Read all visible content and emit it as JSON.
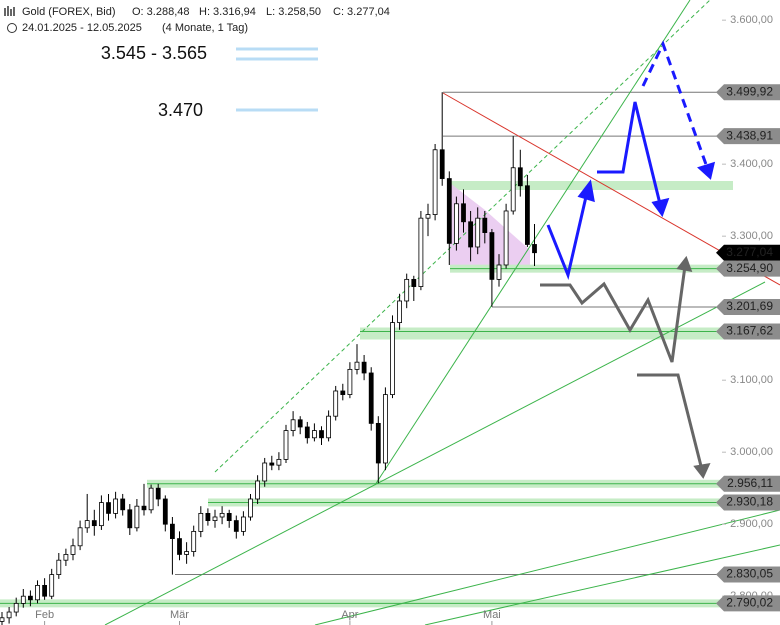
{
  "header": {
    "title": "Gold (FOREX, Bid)",
    "quote": [
      "O: 3.288,48",
      "H: 3.316,94",
      "L: 3.258,50",
      "C: 3.277,04"
    ],
    "range": "24.01.2025 - 12.05.2025",
    "span": "(4 Monate, 1 Tag)"
  },
  "chart_data": {
    "type": "candlestick",
    "categories": [
      null,
      null,
      null,
      null,
      null,
      null,
      "Feb",
      null,
      null,
      null,
      null,
      null,
      null,
      null,
      null,
      null,
      null,
      null,
      null,
      null,
      null,
      null,
      null,
      null,
      null,
      "Mär",
      null,
      null,
      null,
      null,
      null,
      null,
      null,
      null,
      null,
      null,
      null,
      null,
      null,
      null,
      null,
      null,
      null,
      null,
      null,
      null,
      null,
      null,
      null,
      "Apr",
      null,
      null,
      null,
      null,
      null,
      null,
      null,
      null,
      null,
      null,
      null,
      null,
      null,
      null,
      null,
      null,
      null,
      null,
      null,
      "Mai",
      null,
      null,
      null,
      null,
      null,
      null
    ],
    "open": [
      2765,
      2770,
      2778,
      2790,
      2800,
      2795,
      2815,
      2800,
      2830,
      2850,
      2858,
      2870,
      2895,
      2905,
      2898,
      2930,
      2915,
      2935,
      2920,
      2895,
      2925,
      2920,
      2950,
      2935,
      2900,
      2880,
      2858,
      2862,
      2890,
      2915,
      2905,
      2910,
      2915,
      2905,
      2890,
      2910,
      2935,
      2960,
      2985,
      2982,
      2990,
      3030,
      3045,
      3035,
      3020,
      3030,
      3020,
      3050,
      3085,
      3080,
      3115,
      3125,
      3110,
      3040,
      2985,
      3080,
      3180,
      3210,
      3240,
      3230,
      3325,
      3330,
      3420,
      3380,
      3290,
      3345,
      3320,
      3285,
      3325,
      3305,
      3240,
      3260,
      3335,
      3395,
      3370,
      3288.48
    ],
    "high": [
      2778,
      2785,
      2798,
      2810,
      2808,
      2822,
      2825,
      2838,
      2860,
      2866,
      2880,
      2905,
      2942,
      2920,
      2940,
      2942,
      2945,
      2942,
      2928,
      2935,
      2956,
      2955,
      2956,
      2940,
      2910,
      2890,
      2875,
      2898,
      2925,
      2922,
      2920,
      2925,
      2920,
      2912,
      2918,
      2942,
      2968,
      2992,
      2995,
      3000,
      3038,
      3057,
      3050,
      3042,
      3040,
      3036,
      3058,
      3092,
      3095,
      3125,
      3150,
      3135,
      3118,
      3050,
      3090,
      3190,
      3220,
      3248,
      3245,
      3335,
      3345,
      3428,
      3500,
      3390,
      3355,
      3365,
      3335,
      3340,
      3335,
      3310,
      3275,
      3345,
      3439,
      3420,
      3385,
      3316.94
    ],
    "low": [
      2758,
      2762,
      2772,
      2784,
      2786,
      2790,
      2795,
      2796,
      2824,
      2842,
      2850,
      2864,
      2888,
      2884,
      2892,
      2905,
      2908,
      2912,
      2885,
      2890,
      2912,
      2915,
      2925,
      2890,
      2830,
      2850,
      2845,
      2855,
      2882,
      2898,
      2895,
      2900,
      2895,
      2880,
      2884,
      2905,
      2928,
      2952,
      2975,
      2975,
      2985,
      3022,
      3025,
      3012,
      3015,
      3010,
      3015,
      3044,
      3072,
      3075,
      3108,
      3100,
      3030,
      2957,
      2975,
      3075,
      3170,
      3200,
      3210,
      3225,
      3300,
      3322,
      3370,
      3260,
      3280,
      3305,
      3265,
      3275,
      3290,
      3202,
      3230,
      3255,
      3330,
      3355,
      3285,
      3258.5
    ],
    "close": [
      2770,
      2778,
      2790,
      2800,
      2795,
      2815,
      2800,
      2830,
      2850,
      2858,
      2870,
      2895,
      2905,
      2898,
      2930,
      2915,
      2935,
      2920,
      2895,
      2925,
      2920,
      2950,
      2935,
      2900,
      2880,
      2858,
      2862,
      2890,
      2915,
      2905,
      2910,
      2915,
      2905,
      2890,
      2910,
      2935,
      2960,
      2985,
      2982,
      2990,
      3030,
      3045,
      3035,
      3020,
      3030,
      3020,
      3050,
      3085,
      3080,
      3115,
      3125,
      3110,
      3040,
      2985,
      3080,
      3180,
      3210,
      3240,
      3230,
      3325,
      3330,
      3420,
      3380,
      3290,
      3345,
      3320,
      3285,
      3325,
      3305,
      3240,
      3260,
      3335,
      3395,
      3370,
      3288.48,
      3277.04
    ],
    "up_color": "#ffffff",
    "down_color": "#000000",
    "ylim": [
      2760,
      3628
    ],
    "yticks": [
      {
        "value": 2800,
        "label": "2.800,00"
      },
      {
        "value": 2900,
        "label": "2.900,00"
      },
      {
        "value": 3000,
        "label": "3.000,00"
      },
      {
        "value": 3100,
        "label": "3.100,00"
      },
      {
        "value": 3300,
        "label": "3.300,00"
      },
      {
        "value": 3400,
        "label": "3.400,00"
      },
      {
        "value": 3600,
        "label": "3.600,00"
      }
    ],
    "levels": [
      {
        "value": 3499.92,
        "label": "3.499,92"
      },
      {
        "value": 3438.91,
        "label": "3.438,91"
      },
      {
        "value": 3277.04,
        "label": "3.277,04",
        "current": true
      },
      {
        "value": 3254.9,
        "label": "3.254,90"
      },
      {
        "value": 3201.69,
        "label": "3.201,69"
      },
      {
        "value": 3167.62,
        "label": "3.167,62"
      },
      {
        "value": 2956.11,
        "label": "2.956,11"
      },
      {
        "value": 2930.18,
        "label": "2.930,18"
      },
      {
        "value": 2830.05,
        "label": "2.830,05"
      },
      {
        "value": 2790.02,
        "label": "2.790,02"
      }
    ],
    "annotations": [
      "3.545 - 3.565",
      "3.470"
    ]
  }
}
